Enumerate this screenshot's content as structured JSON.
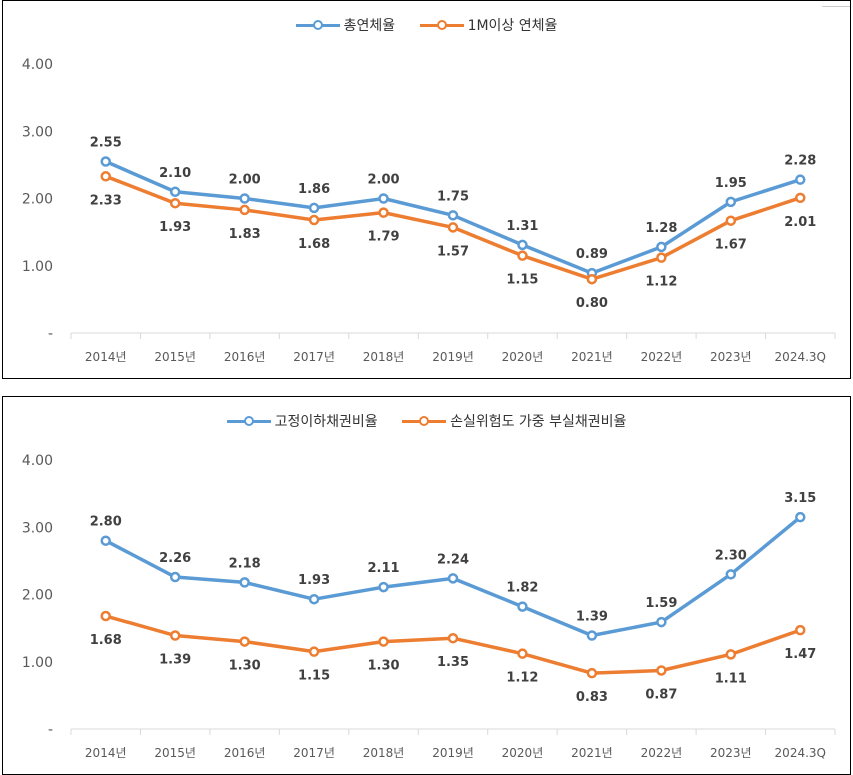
{
  "chart_data": [
    {
      "type": "line",
      "categories": [
        "2014년",
        "2015년",
        "2016년",
        "2017년",
        "2018년",
        "2019년",
        "2020년",
        "2021년",
        "2022년",
        "2023년",
        "2024.3Q"
      ],
      "y_ticks": [
        "-",
        "1.00",
        "2.00",
        "3.00",
        "4.00"
      ],
      "ylim": [
        0,
        4
      ],
      "grid": false,
      "legend_position": "top",
      "series": [
        {
          "name": "총연체율",
          "color": "#5B9BD5",
          "label_pos": "above",
          "values": [
            2.55,
            2.1,
            2.0,
            1.86,
            2.0,
            1.75,
            1.31,
            0.89,
            1.28,
            1.95,
            2.28
          ],
          "labels": [
            "2.55",
            "2.10",
            "2.00",
            "1.86",
            "2.00",
            "1.75",
            "1.31",
            "0.89",
            "1.28",
            "1.95",
            "2.28"
          ]
        },
        {
          "name": "1M이상 연체율",
          "color": "#ED7D31",
          "label_pos": "below",
          "values": [
            2.33,
            1.93,
            1.83,
            1.68,
            1.79,
            1.57,
            1.15,
            0.8,
            1.12,
            1.67,
            2.01
          ],
          "labels": [
            "2.33",
            "1.93",
            "1.83",
            "1.68",
            "1.79",
            "1.57",
            "1.15",
            "0.80",
            "1.12",
            "1.67",
            "2.01"
          ]
        }
      ]
    },
    {
      "type": "line",
      "categories": [
        "2014년",
        "2015년",
        "2016년",
        "2017년",
        "2018년",
        "2019년",
        "2020년",
        "2021년",
        "2022년",
        "2023년",
        "2024.3Q"
      ],
      "y_ticks": [
        "-",
        "1.00",
        "2.00",
        "3.00",
        "4.00"
      ],
      "ylim": [
        0,
        4
      ],
      "grid": false,
      "legend_position": "top",
      "series": [
        {
          "name": "고정이하채권비율",
          "color": "#5B9BD5",
          "label_pos": "above",
          "values": [
            2.8,
            2.26,
            2.18,
            1.93,
            2.11,
            2.24,
            1.82,
            1.39,
            1.59,
            2.3,
            3.15
          ],
          "labels": [
            "2.80",
            "2.26",
            "2.18",
            "1.93",
            "2.11",
            "2.24",
            "1.82",
            "1.39",
            "1.59",
            "2.30",
            "3.15"
          ]
        },
        {
          "name": "손실위험도 가중 부실채권비율",
          "color": "#ED7D31",
          "label_pos": "below",
          "values": [
            1.68,
            1.39,
            1.3,
            1.15,
            1.3,
            1.35,
            1.12,
            0.83,
            0.87,
            1.11,
            1.47
          ],
          "labels": [
            "1.68",
            "1.39",
            "1.30",
            "1.15",
            "1.30",
            "1.35",
            "1.12",
            "0.83",
            "0.87",
            "1.11",
            "1.47"
          ]
        }
      ]
    }
  ]
}
